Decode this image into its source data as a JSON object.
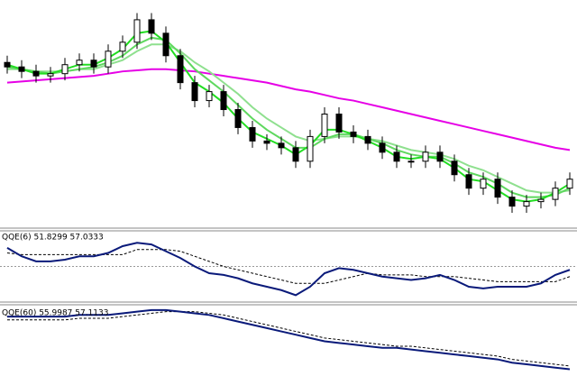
{
  "chart_data": [
    {
      "type": "candlestick",
      "ylim": [
        0,
        100
      ],
      "up_color": "#ffffff",
      "down_color": "#000000",
      "open": [
        73,
        71,
        69,
        67,
        68,
        72,
        74,
        71,
        78,
        82,
        92,
        86,
        76,
        64,
        56,
        60,
        52,
        44,
        38,
        37,
        35,
        29,
        40,
        50,
        42,
        40,
        37,
        33,
        29,
        29,
        33,
        29,
        23,
        17,
        21,
        13,
        9,
        11,
        12,
        17
      ],
      "high": [
        76,
        74,
        72,
        71,
        75,
        77,
        77,
        81,
        85,
        95,
        95,
        89,
        79,
        67,
        63,
        63,
        55,
        47,
        41,
        40,
        38,
        43,
        53,
        53,
        45,
        43,
        40,
        36,
        32,
        36,
        36,
        32,
        26,
        24,
        24,
        16,
        14,
        15,
        20,
        24
      ],
      "low": [
        68,
        66,
        64,
        64,
        65,
        69,
        68,
        68,
        75,
        79,
        83,
        73,
        61,
        53,
        53,
        49,
        41,
        35,
        34,
        32,
        26,
        26,
        37,
        39,
        37,
        34,
        30,
        26,
        26,
        26,
        26,
        20,
        14,
        14,
        10,
        6,
        6,
        8,
        9,
        14
      ],
      "close": [
        71,
        69,
        67,
        68,
        72,
        74,
        71,
        78,
        82,
        92,
        86,
        76,
        64,
        56,
        60,
        52,
        44,
        38,
        37,
        35,
        29,
        40,
        50,
        42,
        40,
        37,
        33,
        29,
        29,
        33,
        29,
        23,
        17,
        21,
        13,
        9,
        11,
        12,
        17,
        21
      ],
      "series": [
        {
          "color": "#e600e6",
          "values": [
            64,
            64.5,
            65,
            65.5,
            66,
            66.5,
            67,
            68,
            69,
            69.5,
            70,
            70,
            69.5,
            69,
            68,
            67,
            66,
            65,
            64,
            62.5,
            61,
            60,
            58.5,
            57,
            56,
            54.5,
            53,
            51.5,
            50,
            48.5,
            47,
            45.5,
            44,
            42.5,
            41,
            39.5,
            38,
            36.5,
            35,
            34
          ]
        },
        {
          "color": "#8fe08f",
          "values": [
            70,
            70,
            69,
            69,
            69,
            70,
            70,
            72,
            74,
            78,
            81,
            81,
            78,
            73,
            69,
            64,
            59,
            53,
            48,
            44,
            40,
            38,
            39,
            40,
            40,
            39,
            38,
            36,
            34,
            33,
            32,
            30,
            27,
            25,
            22,
            19,
            16,
            15,
            15,
            16
          ]
        },
        {
          "color": "#5fd85f",
          "values": [
            71,
            70,
            69,
            68,
            69,
            70,
            71,
            73,
            76,
            81,
            84,
            83,
            77,
            70,
            65,
            60,
            54,
            48,
            43,
            39,
            35,
            35,
            39,
            41,
            41,
            39,
            37,
            34,
            32,
            31,
            31,
            28,
            24,
            22,
            19,
            15,
            13,
            13,
            14,
            17
          ]
        },
        {
          "color": "#22dd22",
          "values": [
            72,
            70,
            68,
            68,
            70,
            72,
            72,
            75,
            79,
            86,
            87,
            82,
            73,
            64,
            60,
            55,
            48,
            42,
            39,
            36,
            32,
            36,
            43,
            43,
            41,
            38,
            35,
            31,
            30,
            31,
            30,
            26,
            21,
            20,
            16,
            12,
            11,
            12,
            15,
            19
          ]
        }
      ]
    },
    {
      "type": "line",
      "title": "QQE(6) 51.8299 57.0333",
      "ylim": [
        30,
        70
      ],
      "levels": [
        50
      ],
      "series": [
        {
          "color": "#000000",
          "dash": true,
          "values": [
            58,
            57,
            57,
            57,
            57,
            57,
            57,
            57,
            57,
            60,
            60,
            60,
            59,
            56,
            53,
            50,
            48,
            46,
            44,
            42,
            40,
            40,
            40,
            42,
            44,
            46,
            45,
            45,
            45,
            44,
            44,
            44,
            43,
            42,
            41,
            41,
            41,
            41,
            41,
            44
          ]
        },
        {
          "color": "#0a1a7a",
          "dash": false,
          "values": [
            61,
            56,
            53,
            53,
            54,
            56,
            56,
            58,
            62,
            64,
            63,
            59,
            55,
            50,
            46,
            45,
            43,
            40,
            38,
            36,
            33,
            38,
            46,
            49,
            48,
            46,
            44,
            43,
            42,
            43,
            45,
            42,
            38,
            37,
            38,
            38,
            38,
            40,
            45,
            48
          ]
        }
      ]
    },
    {
      "type": "line",
      "title": "QQE(60) 55.9987 57.1133",
      "ylim": [
        30,
        70
      ],
      "levels": [],
      "series": [
        {
          "color": "#000000",
          "dash": true,
          "values": [
            63,
            63,
            63,
            63,
            63,
            64,
            64,
            64,
            65,
            66,
            67,
            68,
            68,
            68,
            67,
            66,
            64,
            62,
            60,
            58,
            56,
            54,
            52,
            51,
            50,
            49,
            48,
            47,
            47,
            46,
            45,
            44,
            43,
            42,
            41,
            39,
            38,
            37,
            36,
            35
          ]
        },
        {
          "color": "#0a1a7a",
          "dash": false,
          "values": [
            65,
            65,
            65,
            65,
            65,
            66,
            66,
            66,
            67,
            68,
            69,
            69,
            68,
            67,
            66,
            64,
            62,
            60,
            58,
            56,
            54,
            52,
            50,
            49,
            48,
            47,
            46,
            46,
            45,
            44,
            43,
            42,
            41,
            40,
            39,
            37,
            36,
            35,
            34,
            33
          ]
        }
      ]
    }
  ]
}
